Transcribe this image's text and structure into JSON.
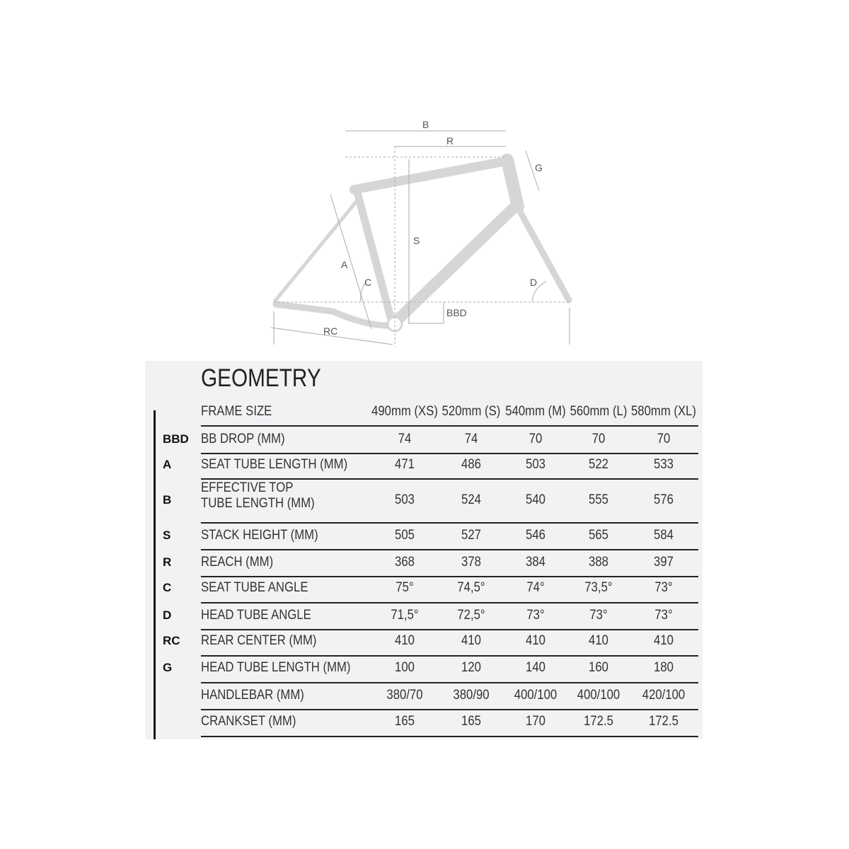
{
  "diagram": {
    "labels": {
      "B": "B",
      "R": "R",
      "G": "G",
      "S": "S",
      "A": "A",
      "C": "C",
      "D": "D",
      "BBD": "BBD",
      "RC": "RC"
    },
    "frame_color": "#d9d9d9"
  },
  "table": {
    "title": "GEOMETRY",
    "header": {
      "label": "FRAME SIZE",
      "sizes": [
        "490mm (XS)",
        "520mm (S)",
        "540mm (M)",
        "560mm (L)",
        "580mm (XL)"
      ]
    },
    "rows": [
      {
        "key": "BBD",
        "label": "BB DROP (MM)",
        "values": [
          "74",
          "74",
          "70",
          "70",
          "70"
        ]
      },
      {
        "key": "A",
        "label": "SEAT TUBE LENGTH (MM)",
        "values": [
          "471",
          "486",
          "503",
          "522",
          "533"
        ]
      },
      {
        "key": "B",
        "label": "EFFECTIVE TOP TUBE LENGTH (MM)",
        "values": [
          "503",
          "524",
          "540",
          "555",
          "576"
        ]
      },
      {
        "key": "S",
        "label": "STACK HEIGHT (MM)",
        "values": [
          "505",
          "527",
          "546",
          "565",
          "584"
        ]
      },
      {
        "key": "R",
        "label": "REACH (MM)",
        "values": [
          "368",
          "378",
          "384",
          "388",
          "397"
        ]
      },
      {
        "key": "C",
        "label": "SEAT TUBE ANGLE",
        "values": [
          "75°",
          "74,5°",
          "74°",
          "73,5°",
          "73°"
        ]
      },
      {
        "key": "D",
        "label": "HEAD TUBE ANGLE",
        "values": [
          "71,5°",
          "72,5°",
          "73°",
          "73°",
          "73°"
        ]
      },
      {
        "key": "RC",
        "label": "REAR CENTER (MM)",
        "values": [
          "410",
          "410",
          "410",
          "410",
          "410"
        ]
      },
      {
        "key": "G",
        "label": "HEAD TUBE LENGTH (MM)",
        "values": [
          "100",
          "120",
          "140",
          "160",
          "180"
        ]
      },
      {
        "key": "",
        "label": "HANDLEBAR (MM)",
        "values": [
          "380/70",
          "380/90",
          "400/100",
          "400/100",
          "420/100"
        ]
      },
      {
        "key": "",
        "label": "CRANKSET (MM)",
        "values": [
          "165",
          "165",
          "170",
          "172.5",
          "172.5"
        ]
      }
    ]
  }
}
